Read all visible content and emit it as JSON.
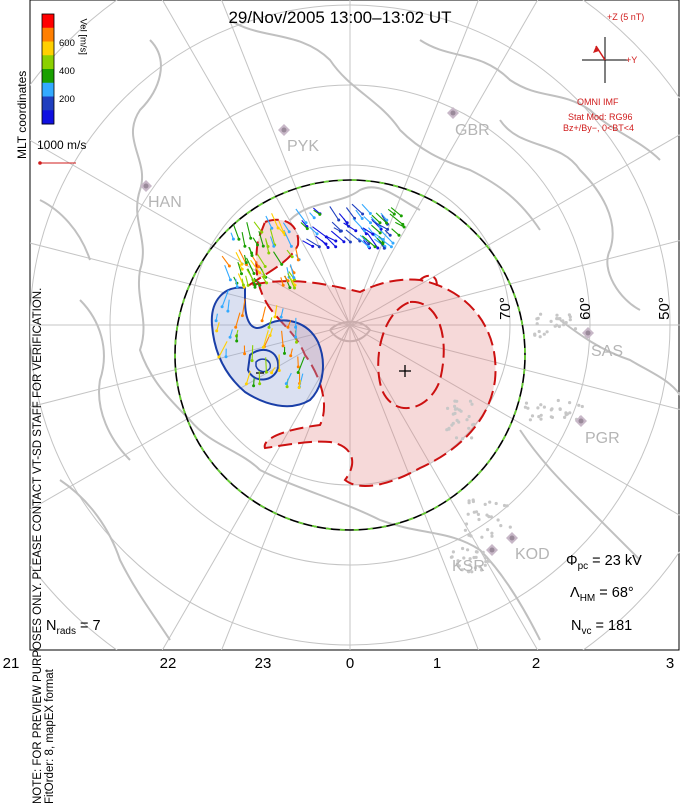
{
  "title": "29/Nov/2005 13:00–13:02 UT",
  "x_axis_ticks": [
    "21",
    "22",
    "23",
    "0",
    "1",
    "2",
    "3"
  ],
  "latitude_labels": [
    "70°",
    "60°",
    "50°"
  ],
  "side_note_line1": "NOTE: FOR PREVIEW PURPOSES ONLY. PLEASE CONTACT VT-SD STAFF FOR VERIFICATION.",
  "side_note_line2": "FitOrder: 8, mapEX format",
  "coordinates_label": "MLT coordinates",
  "colorbar": {
    "label": "Vel [m/s]",
    "ticks": [
      "600",
      "400",
      "200"
    ],
    "colors": [
      "#ff0000",
      "#ff7f00",
      "#ffd000",
      "#8bd000",
      "#19a000",
      "#33aaff",
      "#1f3fbf",
      "#1010e0"
    ]
  },
  "vector_scale_label": "1000 m/s",
  "imf": {
    "z_label": "+Z (5 nT)",
    "y_label": "+Y",
    "source": "OMNI IMF",
    "model_line1": "Stat Mod: RG96",
    "model_line2": "Bz+/By−, 0<BT<4"
  },
  "radars": [
    "PYK",
    "GBR",
    "HAN",
    "SAS",
    "PGR",
    "KOD",
    "KSR"
  ],
  "stats": {
    "phi_pc_label": "Φ",
    "phi_pc_sub": "pc",
    "phi_pc_value": "= 23 kV",
    "lambda_label": "Λ",
    "lambda_sub": "HM",
    "lambda_value": "= 68°",
    "nvc_label": "N",
    "nvc_sub": "vc",
    "nvc_value": "= 181",
    "nrads_label": "N",
    "nrads_sub": "rads",
    "nrads_value": "= 7"
  },
  "colors": {
    "positive_cell": "#cc1111",
    "negative_cell": "#1a3fa8",
    "hmb_outer": "#000000",
    "hmb_dash": "#66cc33",
    "grid": "#bbbbbb",
    "coast": "#bdbdbd"
  }
}
